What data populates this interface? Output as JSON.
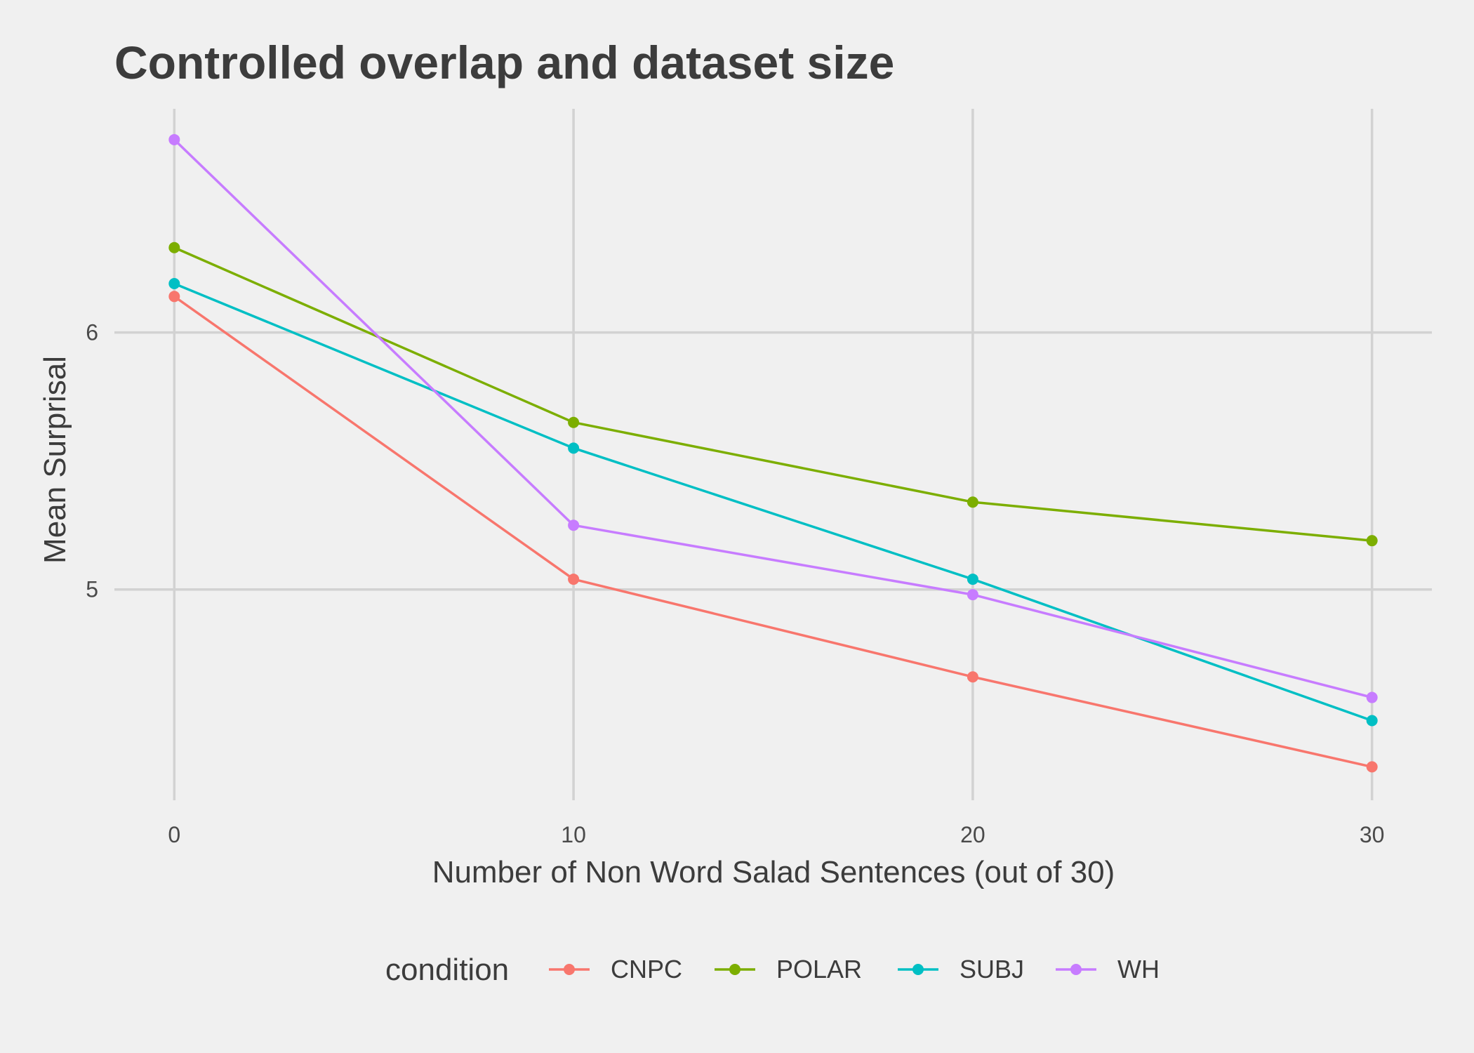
{
  "chart_data": {
    "type": "line",
    "title": "Controlled overlap and dataset size",
    "xlabel": "Number of Non Word Salad Sentences (out of 30)",
    "ylabel": "Mean Surprisal",
    "x": [
      0,
      10,
      20,
      30
    ],
    "x_ticks": [
      "0",
      "10",
      "20",
      "30"
    ],
    "y_ticks": [
      "5",
      "6"
    ],
    "xlim": [
      -1.5,
      31.5
    ],
    "ylim": [
      4.18,
      6.87
    ],
    "grid": true,
    "legend_placement": "bottom",
    "legend_title": "condition",
    "series": [
      {
        "name": "CNPC",
        "color": "#F8766D",
        "values": [
          6.14,
          5.04,
          4.66,
          4.31
        ]
      },
      {
        "name": "POLAR",
        "color": "#7CAE00",
        "values": [
          6.33,
          5.65,
          5.34,
          5.19
        ]
      },
      {
        "name": "SUBJ",
        "color": "#00BFC4",
        "values": [
          6.19,
          5.55,
          5.04,
          4.49
        ]
      },
      {
        "name": "WH",
        "color": "#C77CFF",
        "values": [
          6.75,
          5.25,
          4.98,
          4.58
        ]
      }
    ]
  }
}
